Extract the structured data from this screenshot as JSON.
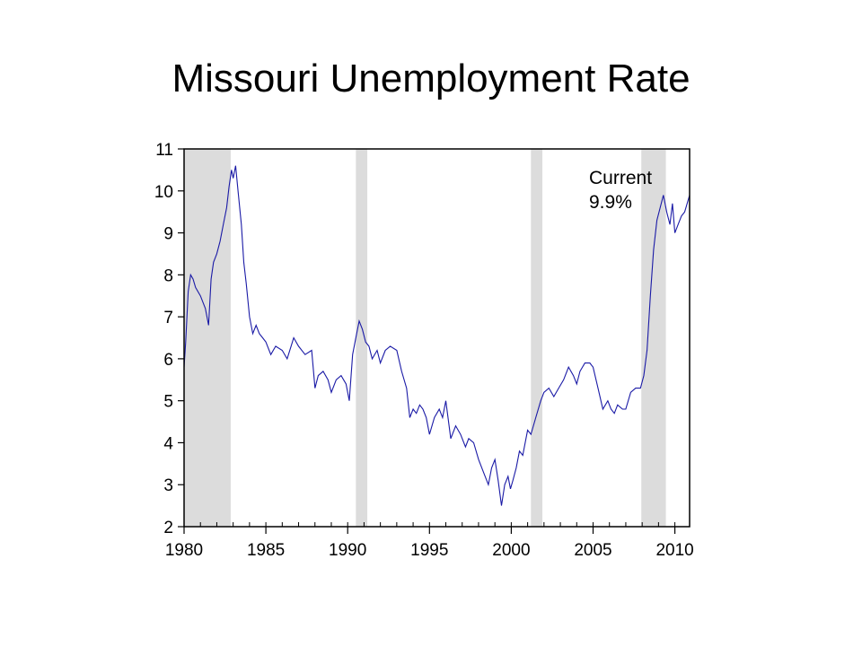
{
  "slide": {
    "title": "Missouri Unemployment Rate"
  },
  "chart_data": {
    "type": "line",
    "title": "Missouri Unemployment Rate",
    "xlabel": "",
    "ylabel": "",
    "xlim": [
      1980,
      2010.9
    ],
    "ylim": [
      2,
      11
    ],
    "y_ticks": [
      "2",
      "3",
      "4",
      "5",
      "6",
      "7",
      "8",
      "9",
      "10",
      "11"
    ],
    "x_ticks": [
      "1980",
      "1985",
      "1990",
      "1995",
      "2000",
      "2005",
      "2010"
    ],
    "annotation": {
      "line1": "Current",
      "line2": "9.9%"
    },
    "recessions": [
      [
        1980.0,
        1982.85
      ],
      [
        1990.5,
        1991.2
      ],
      [
        2001.2,
        2001.9
      ],
      [
        2007.95,
        2009.45
      ]
    ],
    "colors": {
      "line": "#1a1aa6",
      "recession": "#dcdcdc",
      "axis": "#000000"
    },
    "grid": false,
    "series": [
      {
        "x": [
          1980.0,
          1980.1,
          1980.25,
          1980.4,
          1980.55,
          1980.7,
          1981.0,
          1981.3,
          1981.5,
          1981.65,
          1981.8,
          1982.0,
          1982.2,
          1982.4,
          1982.6,
          1982.75,
          1982.9,
          1983.0,
          1983.15,
          1983.3,
          1983.5,
          1983.65,
          1983.8,
          1984.0,
          1984.2,
          1984.4,
          1984.6,
          1984.8,
          1985.0,
          1985.3,
          1985.6,
          1986.0,
          1986.3,
          1986.7,
          1987.0,
          1987.4,
          1987.8,
          1988.0,
          1988.2,
          1988.5,
          1988.8,
          1989.0,
          1989.3,
          1989.6,
          1989.9,
          1990.1,
          1990.3,
          1990.5,
          1990.7,
          1990.9,
          1991.1,
          1991.3,
          1991.5,
          1991.8,
          1992.0,
          1992.3,
          1992.6,
          1993.0,
          1993.3,
          1993.6,
          1993.8,
          1994.0,
          1994.2,
          1994.4,
          1994.6,
          1994.8,
          1995.0,
          1995.3,
          1995.6,
          1995.8,
          1996.0,
          1996.3,
          1996.6,
          1996.9,
          1997.2,
          1997.4,
          1997.7,
          1998.0,
          1998.3,
          1998.6,
          1998.8,
          1999.0,
          1999.2,
          1999.4,
          1999.6,
          1999.8,
          1999.95,
          2000.1,
          2000.3,
          2000.5,
          2000.7,
          2001.0,
          2001.2,
          2001.5,
          2001.8,
          2002.0,
          2002.3,
          2002.6,
          2002.9,
          2003.2,
          2003.5,
          2003.8,
          2004.0,
          2004.2,
          2004.5,
          2004.8,
          2005.0,
          2005.3,
          2005.6,
          2005.9,
          2006.1,
          2006.3,
          2006.5,
          2006.8,
          2007.0,
          2007.3,
          2007.6,
          2007.9,
          2008.1,
          2008.3,
          2008.5,
          2008.7,
          2008.9,
          2009.1,
          2009.3,
          2009.5,
          2009.7,
          2009.85,
          2010.0,
          2010.2,
          2010.4,
          2010.6,
          2010.9
        ],
        "y": [
          5.8,
          6.4,
          7.6,
          8.0,
          7.9,
          7.7,
          7.5,
          7.2,
          6.8,
          7.9,
          8.3,
          8.5,
          8.8,
          9.2,
          9.6,
          10.1,
          10.5,
          10.3,
          10.6,
          10.0,
          9.2,
          8.3,
          7.8,
          7.0,
          6.6,
          6.8,
          6.6,
          6.5,
          6.4,
          6.1,
          6.3,
          6.2,
          6.0,
          6.5,
          6.3,
          6.1,
          6.2,
          5.3,
          5.6,
          5.7,
          5.5,
          5.2,
          5.5,
          5.6,
          5.4,
          5.0,
          6.1,
          6.5,
          6.9,
          6.7,
          6.4,
          6.3,
          6.0,
          6.2,
          5.9,
          6.2,
          6.3,
          6.2,
          5.7,
          5.3,
          4.6,
          4.8,
          4.7,
          4.9,
          4.8,
          4.6,
          4.2,
          4.6,
          4.8,
          4.6,
          5.0,
          4.1,
          4.4,
          4.2,
          3.9,
          4.1,
          4.0,
          3.6,
          3.3,
          3.0,
          3.4,
          3.6,
          3.1,
          2.5,
          3.0,
          3.2,
          2.9,
          3.1,
          3.4,
          3.8,
          3.7,
          4.3,
          4.2,
          4.6,
          5.0,
          5.2,
          5.3,
          5.1,
          5.3,
          5.5,
          5.8,
          5.6,
          5.4,
          5.7,
          5.9,
          5.9,
          5.8,
          5.3,
          4.8,
          5.0,
          4.8,
          4.7,
          4.9,
          4.8,
          4.8,
          5.2,
          5.3,
          5.3,
          5.6,
          6.2,
          7.5,
          8.6,
          9.3,
          9.6,
          9.9,
          9.5,
          9.2,
          9.7,
          9.0,
          9.2,
          9.4,
          9.5,
          9.9
        ]
      }
    ]
  }
}
